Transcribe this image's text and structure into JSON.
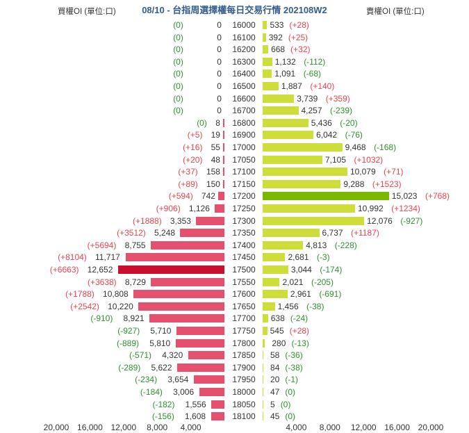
{
  "header": {
    "title": "08/10 - 台指周選擇權每日交易行情 202108W2",
    "left_label": "買權OI (單位:口)",
    "right_label": "賣權OI (單位:口)"
  },
  "axis": {
    "left_ticks": [
      "20,000",
      "16,000",
      "12,000",
      "8,000",
      "4,000"
    ],
    "right_ticks": [
      "4,000",
      "8,000",
      "12,000",
      "16,000",
      "20,000"
    ]
  },
  "colors": {
    "call_bar": "#e4506e",
    "call_bar_max": "#c8102e",
    "put_bar": "#cdde3a",
    "put_bar_max": "#7ab800",
    "positive_change": "#e8444f",
    "negative_change": "#2f8f2f",
    "title": "#335c8c"
  },
  "chart_data": {
    "type": "bar",
    "orientation": "horizontal-butterfly",
    "title": "08/10 - 台指周選擇權每日交易行情 202108W2",
    "xlabel_left": "買權OI (單位:口)",
    "xlabel_right": "賣權OI (單位:口)",
    "xlim": [
      0,
      20000
    ],
    "categories": [
      "16000",
      "16100",
      "16200",
      "16300",
      "16400",
      "16500",
      "16600",
      "16700",
      "16800",
      "16900",
      "17000",
      "17050",
      "17100",
      "17150",
      "17200",
      "17250",
      "17300",
      "17350",
      "17400",
      "17450",
      "17500",
      "17550",
      "17600",
      "17650",
      "17700",
      "17750",
      "17800",
      "17850",
      "17900",
      "17950",
      "18000",
      "18050",
      "18100"
    ],
    "series": [
      {
        "name": "Call OI",
        "values": [
          0,
          0,
          0,
          0,
          0,
          0,
          0,
          0,
          8,
          19,
          55,
          48,
          158,
          150,
          742,
          1126,
          3353,
          5248,
          8755,
          11717,
          12652,
          8729,
          10808,
          10220,
          8921,
          5710,
          5810,
          4320,
          5622,
          3654,
          3006,
          1556,
          1608
        ],
        "changes": [
          "0",
          "0",
          "0",
          "0",
          "0",
          "0",
          "0",
          "0",
          "0",
          "+5",
          "+16",
          "+20",
          "+37",
          "+89",
          "+594",
          "+906",
          "+1888",
          "+3512",
          "+5694",
          "+8104",
          "+6663",
          "+3638",
          "+1788",
          "+2542",
          "-910",
          "-927",
          "-889",
          "-571",
          "-289",
          "-234",
          "-184",
          "-182",
          "-156"
        ]
      },
      {
        "name": "Put OI",
        "values": [
          533,
          392,
          668,
          1132,
          1091,
          1887,
          3739,
          4257,
          5436,
          6042,
          9468,
          7105,
          10079,
          9288,
          15023,
          10992,
          12076,
          6737,
          4813,
          2681,
          3044,
          2021,
          2961,
          1456,
          638,
          545,
          280,
          58,
          84,
          20,
          47,
          5,
          45
        ],
        "changes": [
          "+28",
          "+25",
          "+32",
          "-112",
          "-68",
          "+140",
          "+359",
          "-239",
          "-20",
          "-76",
          "-168",
          "+1032",
          "+71",
          "+1523",
          "+768",
          "+1234",
          "-927",
          "+1187",
          "-228",
          "-3",
          "-174",
          "-205",
          "-691",
          "-38",
          "-24",
          "+28",
          "-13",
          "-36",
          "-38",
          "-1",
          "0",
          "0",
          "0"
        ]
      }
    ]
  },
  "rows": [
    {
      "strike": "16000",
      "call": "0",
      "call_chg": "(0)",
      "put": "533",
      "put_chg": "(+28)"
    },
    {
      "strike": "16100",
      "call": "0",
      "call_chg": "(0)",
      "put": "392",
      "put_chg": "(+25)"
    },
    {
      "strike": "16200",
      "call": "0",
      "call_chg": "(0)",
      "put": "668",
      "put_chg": "(+32)"
    },
    {
      "strike": "16300",
      "call": "0",
      "call_chg": "(0)",
      "put": "1,132",
      "put_chg": "(-112)"
    },
    {
      "strike": "16400",
      "call": "0",
      "call_chg": "(0)",
      "put": "1,091",
      "put_chg": "(-68)"
    },
    {
      "strike": "16500",
      "call": "0",
      "call_chg": "(0)",
      "put": "1,887",
      "put_chg": "(+140)"
    },
    {
      "strike": "16600",
      "call": "0",
      "call_chg": "(0)",
      "put": "3,739",
      "put_chg": "(+359)"
    },
    {
      "strike": "16700",
      "call": "0",
      "call_chg": "(0)",
      "put": "4,257",
      "put_chg": "(-239)"
    },
    {
      "strike": "16800",
      "call": "8",
      "call_chg": "(0)",
      "put": "5,436",
      "put_chg": "(-20)"
    },
    {
      "strike": "16900",
      "call": "19",
      "call_chg": "(+5)",
      "put": "6,042",
      "put_chg": "(-76)"
    },
    {
      "strike": "17000",
      "call": "55",
      "call_chg": "(+16)",
      "put": "9,468",
      "put_chg": "(-168)"
    },
    {
      "strike": "17050",
      "call": "48",
      "call_chg": "(+20)",
      "put": "7,105",
      "put_chg": "(+1032)"
    },
    {
      "strike": "17100",
      "call": "158",
      "call_chg": "(+37)",
      "put": "10,079",
      "put_chg": "(+71)"
    },
    {
      "strike": "17150",
      "call": "150",
      "call_chg": "(+89)",
      "put": "9,288",
      "put_chg": "(+1523)"
    },
    {
      "strike": "17200",
      "call": "742",
      "call_chg": "(+594)",
      "put": "15,023",
      "put_chg": "(+768)"
    },
    {
      "strike": "17250",
      "call": "1,126",
      "call_chg": "(+906)",
      "put": "10,992",
      "put_chg": "(+1234)"
    },
    {
      "strike": "17300",
      "call": "3,353",
      "call_chg": "(+1888)",
      "put": "12,076",
      "put_chg": "(-927)"
    },
    {
      "strike": "17350",
      "call": "5,248",
      "call_chg": "(+3512)",
      "put": "6,737",
      "put_chg": "(+1187)"
    },
    {
      "strike": "17400",
      "call": "8,755",
      "call_chg": "(+5694)",
      "put": "4,813",
      "put_chg": "(-228)"
    },
    {
      "strike": "17450",
      "call": "11,717",
      "call_chg": "(+8104)",
      "put": "2,681",
      "put_chg": "(-3)"
    },
    {
      "strike": "17500",
      "call": "12,652",
      "call_chg": "(+6663)",
      "put": "3,044",
      "put_chg": "(-174)"
    },
    {
      "strike": "17550",
      "call": "8,729",
      "call_chg": "(+3638)",
      "put": "2,021",
      "put_chg": "(-205)"
    },
    {
      "strike": "17600",
      "call": "10,808",
      "call_chg": "(+1788)",
      "put": "2,961",
      "put_chg": "(-691)"
    },
    {
      "strike": "17650",
      "call": "10,220",
      "call_chg": "(+2542)",
      "put": "1,456",
      "put_chg": "(-38)"
    },
    {
      "strike": "17700",
      "call": "8,921",
      "call_chg": "(-910)",
      "put": "638",
      "put_chg": "(-24)"
    },
    {
      "strike": "17750",
      "call": "5,710",
      "call_chg": "(-927)",
      "put": "545",
      "put_chg": "(+28)"
    },
    {
      "strike": "17800",
      "call": "5,810",
      "call_chg": "(-889)",
      "put": "280",
      "put_chg": "(-13)"
    },
    {
      "strike": "17850",
      "call": "4,320",
      "call_chg": "(-571)",
      "put": "58",
      "put_chg": "(-36)"
    },
    {
      "strike": "17900",
      "call": "5,622",
      "call_chg": "(-289)",
      "put": "84",
      "put_chg": "(-38)"
    },
    {
      "strike": "17950",
      "call": "3,654",
      "call_chg": "(-234)",
      "put": "20",
      "put_chg": "(-1)"
    },
    {
      "strike": "18000",
      "call": "3,006",
      "call_chg": "(-184)",
      "put": "47",
      "put_chg": "(0)"
    },
    {
      "strike": "18050",
      "call": "1,556",
      "call_chg": "(-182)",
      "put": "5",
      "put_chg": "(0)"
    },
    {
      "strike": "18100",
      "call": "1,608",
      "call_chg": "(-156)",
      "put": "45",
      "put_chg": "(0)"
    }
  ]
}
